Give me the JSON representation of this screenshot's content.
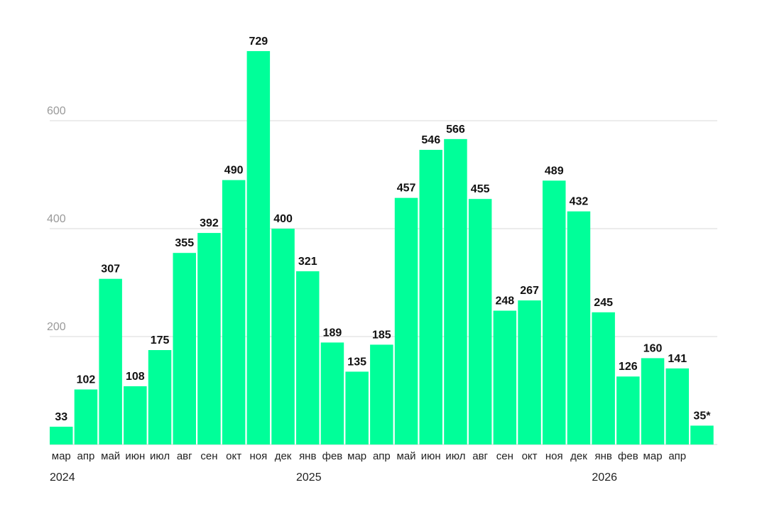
{
  "chart_data": {
    "type": "bar",
    "categories": [
      "мар",
      "апр",
      "май",
      "июн",
      "июл",
      "авг",
      "сен",
      "окт",
      "ноя",
      "дек",
      "янв",
      "фев",
      "мар",
      "апр",
      "май",
      "июн",
      "июл",
      "авг",
      "сен",
      "окт",
      "ноя",
      "дек",
      "янв",
      "фев",
      "мар",
      "апр",
      ""
    ],
    "values": [
      33,
      102,
      307,
      108,
      175,
      355,
      392,
      490,
      729,
      400,
      321,
      189,
      135,
      185,
      457,
      546,
      566,
      455,
      248,
      267,
      489,
      432,
      245,
      126,
      160,
      141,
      35
    ],
    "value_labels": [
      "33",
      "102",
      "307",
      "108",
      "175",
      "355",
      "392",
      "490",
      "729",
      "400",
      "321",
      "189",
      "135",
      "185",
      "457",
      "546",
      "566",
      "455",
      "248",
      "267",
      "489",
      "432",
      "245",
      "126",
      "160",
      "141",
      "35*"
    ],
    "years": [
      {
        "label": "2024",
        "at_index": 0
      },
      {
        "label": "2025",
        "at_index": 10
      },
      {
        "label": "2026",
        "at_index": 22
      }
    ],
    "yticks": [
      200,
      400,
      600
    ],
    "ylim": [
      0,
      760
    ],
    "grid": true,
    "bar_color": "#00FF99",
    "title": "",
    "xlabel": "",
    "ylabel": ""
  }
}
